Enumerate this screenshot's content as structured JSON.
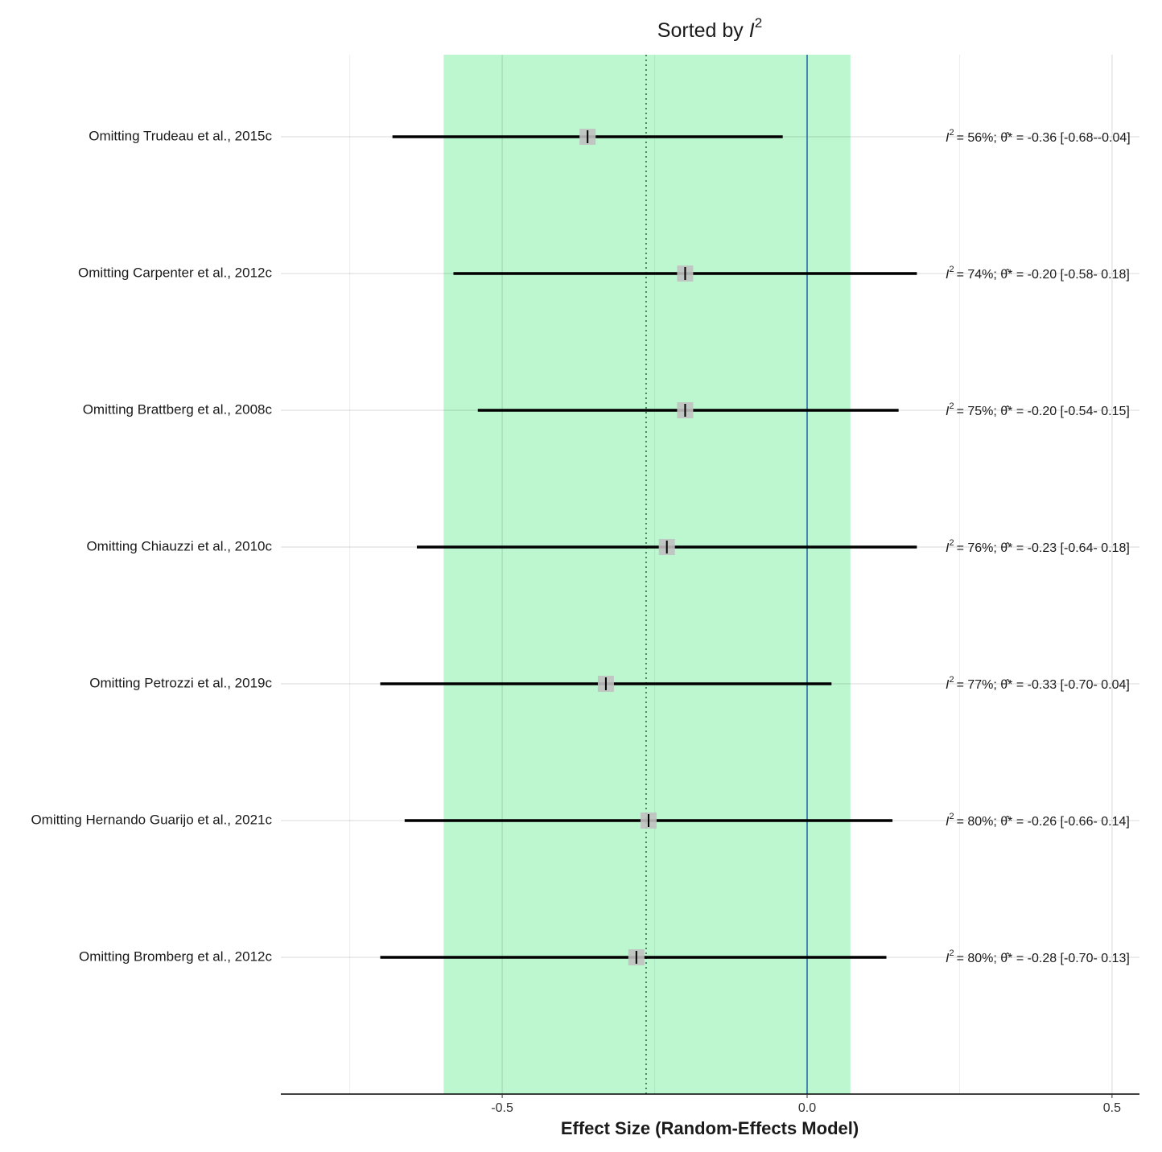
{
  "chart_data": {
    "type": "forest",
    "title": "Sorted by",
    "i2_symbol": "I",
    "i2_sup": "2",
    "x_label": "Effect Size (Random-Effects Model)",
    "categories": [
      "Omitting Trudeau et al., 2015c",
      "Omitting Carpenter et al., 2012c",
      "Omitting Brattberg et al., 2008c",
      "Omitting Chiauzzi et al., 2010c",
      "Omitting Petrozzi et al., 2019c",
      "Omitting Hernando Guarijo et al., 2021c",
      "Omitting Bromberg et al., 2012c"
    ],
    "values": [
      -0.36,
      -0.2,
      -0.2,
      -0.23,
      -0.33,
      -0.26,
      -0.28
    ],
    "lower": [
      -0.68,
      -0.58,
      -0.54,
      -0.64,
      -0.7,
      -0.66,
      -0.7
    ],
    "upper": [
      -0.04,
      0.18,
      0.15,
      0.18,
      0.04,
      0.14,
      0.13
    ],
    "annotations": [
      "= 56%; θ̂* = -0.36 [-0.68--0.04]",
      "= 74%; θ̂* = -0.20 [-0.58- 0.18]",
      "= 75%; θ̂* = -0.20 [-0.54- 0.15]",
      "= 76%; θ̂* = -0.23 [-0.64- 0.18]",
      "= 77%; θ̂* = -0.33 [-0.70- 0.04]",
      "= 80%; θ̂* = -0.26 [-0.66- 0.14]",
      "= 80%; θ̂* = -0.28 [-0.70- 0.13]"
    ],
    "xlim": [
      -0.863,
      0.545
    ],
    "xticks": [
      -0.5,
      {
        "value": 0,
        "label": "0.0"
      },
      0.5
    ],
    "minor_xticks": [
      -0.75,
      -0.25,
      0.25
    ],
    "band": [
      -0.596,
      0.071
    ],
    "band_color": "#bdf7d0",
    "pooled": -0.264,
    "null_line": 0,
    "null_color": "#2166ac",
    "point_color": "#c0c0c0",
    "line_color": "#000000",
    "grid": true
  }
}
